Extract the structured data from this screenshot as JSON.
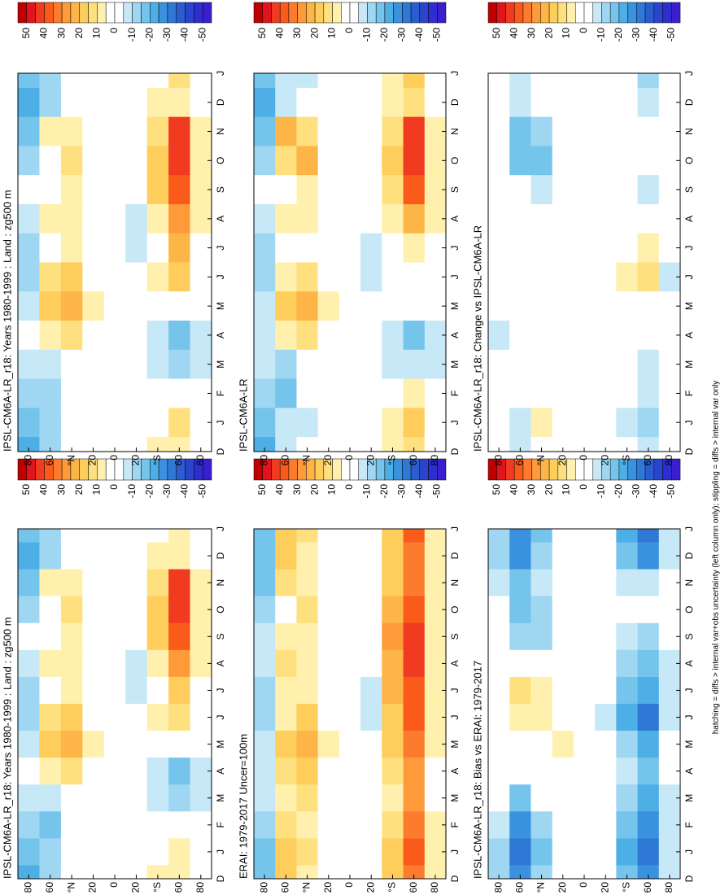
{
  "chart_data": [
    {
      "type": "heatmap",
      "title": "IPSL-CM6A-LR_r18: Years 1980-1999 : Land : zg500 m",
      "categories": [
        "D",
        "J",
        "F",
        "M",
        "A",
        "M",
        "J",
        "J",
        "A",
        "S",
        "O",
        "N",
        "D",
        "J"
      ],
      "y": [
        80,
        60,
        40,
        20,
        0,
        -20,
        -40,
        -60,
        -80
      ],
      "ylim": [
        90,
        -90
      ],
      "yticks": [
        80,
        60,
        {
          "value": 40,
          "label": "°N"
        },
        20,
        0,
        {
          "value": -20,
          "label": "20"
        },
        {
          "value": -40,
          "label": "°S"
        },
        {
          "value": -60,
          "label": "60"
        },
        {
          "value": -80,
          "label": "80"
        }
      ],
      "z": [
        [
          -20,
          -15,
          -10,
          -5,
          0,
          -5,
          -10,
          -10,
          -5,
          0,
          -10,
          -15,
          -20,
          -15
        ],
        [
          -10,
          -10,
          -15,
          -5,
          10,
          20,
          15,
          5,
          10,
          5,
          5,
          10,
          -10,
          -10
        ],
        [
          5,
          0,
          0,
          5,
          15,
          25,
          20,
          10,
          10,
          10,
          15,
          10,
          5,
          0
        ],
        [
          0,
          0,
          0,
          0,
          5,
          10,
          5,
          5,
          5,
          5,
          5,
          0,
          0,
          0
        ],
        [
          0,
          0,
          0,
          0,
          0,
          0,
          0,
          0,
          0,
          0,
          0,
          0,
          0,
          0
        ],
        [
          0,
          0,
          0,
          0,
          0,
          5,
          0,
          -5,
          -5,
          0,
          0,
          0,
          0,
          0
        ],
        [
          10,
          5,
          0,
          -5,
          -5,
          5,
          10,
          0,
          10,
          20,
          20,
          15,
          10,
          5
        ],
        [
          10,
          10,
          5,
          -10,
          -15,
          5,
          15,
          20,
          30,
          40,
          45,
          45,
          10,
          10
        ],
        [
          5,
          5,
          5,
          -5,
          -5,
          0,
          5,
          0,
          10,
          10,
          10,
          10,
          5,
          5
        ]
      ]
    },
    {
      "type": "heatmap",
      "title": "ERAI: 1979-2017 Uncer=100m",
      "categories": [
        "D",
        "J",
        "F",
        "M",
        "A",
        "M",
        "J",
        "J",
        "A",
        "S",
        "O",
        "N",
        "D",
        "J"
      ],
      "y": [
        80,
        60,
        40,
        20,
        0,
        -20,
        -40,
        -60,
        -80
      ],
      "ylim": [
        90,
        -90
      ],
      "yticks": [
        80,
        60,
        {
          "value": 40,
          "label": "°N"
        },
        20,
        0,
        {
          "value": -20,
          "label": "20"
        },
        {
          "value": -40,
          "label": "°S"
        },
        {
          "value": -60,
          "label": "60"
        },
        {
          "value": -80,
          "label": "80"
        }
      ],
      "z": [
        [
          -15,
          -15,
          -10,
          -5,
          -5,
          -5,
          -10,
          -10,
          -5,
          -5,
          -10,
          -15,
          -15,
          -15
        ],
        [
          20,
          20,
          15,
          10,
          15,
          20,
          10,
          10,
          15,
          10,
          5,
          15,
          20,
          20
        ],
        [
          10,
          15,
          10,
          15,
          20,
          25,
          20,
          10,
          10,
          10,
          15,
          10,
          10,
          15
        ],
        [
          0,
          0,
          5,
          5,
          5,
          10,
          5,
          0,
          5,
          5,
          0,
          0,
          0,
          0
        ],
        [
          0,
          0,
          0,
          0,
          0,
          0,
          0,
          0,
          0,
          0,
          0,
          0,
          0,
          0
        ],
        [
          0,
          0,
          0,
          0,
          5,
          0,
          -5,
          -5,
          0,
          0,
          0,
          0,
          0,
          0
        ],
        [
          20,
          20,
          15,
          10,
          15,
          20,
          20,
          25,
          25,
          30,
          25,
          20,
          20,
          20
        ],
        [
          35,
          40,
          35,
          30,
          30,
          35,
          40,
          40,
          45,
          45,
          40,
          35,
          35,
          40
        ],
        [
          10,
          10,
          10,
          5,
          5,
          10,
          10,
          10,
          10,
          10,
          10,
          10,
          10,
          10
        ]
      ]
    },
    {
      "type": "heatmap",
      "title": "IPSL-CM6A-LR_r18: Bias vs ERAI: 1979-2017",
      "categories": [
        "D",
        "J",
        "F",
        "M",
        "A",
        "M",
        "J",
        "J",
        "A",
        "S",
        "O",
        "N",
        "D",
        "J"
      ],
      "y": [
        80,
        60,
        40,
        20,
        0,
        -20,
        -40,
        -60,
        -80
      ],
      "ylim": [
        90,
        -90
      ],
      "yticks": [
        80,
        60,
        {
          "value": 40,
          "label": "°N"
        },
        20,
        0,
        {
          "value": -20,
          "label": "20"
        },
        {
          "value": -40,
          "label": "°S"
        },
        {
          "value": -60,
          "label": "60"
        },
        {
          "value": -80,
          "label": "80"
        }
      ],
      "z": [
        [
          -10,
          -10,
          -5,
          0,
          0,
          0,
          0,
          0,
          0,
          0,
          0,
          -5,
          -10,
          -10
        ],
        [
          -25,
          -30,
          -25,
          -15,
          0,
          5,
          10,
          15,
          5,
          -10,
          -15,
          -15,
          -25,
          -25
        ],
        [
          -10,
          -15,
          -10,
          5,
          5,
          5,
          10,
          10,
          5,
          -10,
          -10,
          -5,
          -10,
          -15
        ],
        [
          0,
          0,
          0,
          5,
          5,
          10,
          5,
          5,
          5,
          0,
          0,
          0,
          0,
          0
        ],
        [
          0,
          0,
          0,
          0,
          0,
          0,
          0,
          0,
          0,
          0,
          0,
          0,
          0,
          0
        ],
        [
          0,
          0,
          0,
          0,
          0,
          0,
          -5,
          0,
          0,
          0,
          0,
          0,
          0,
          0
        ],
        [
          -15,
          -20,
          -15,
          -10,
          -5,
          -10,
          -20,
          -15,
          -10,
          -5,
          0,
          -5,
          -15,
          -20
        ],
        [
          -25,
          -30,
          -25,
          -20,
          -15,
          -20,
          -30,
          -20,
          -15,
          -10,
          5,
          -5,
          -25,
          -30
        ],
        [
          -5,
          -5,
          -5,
          -5,
          0,
          0,
          -5,
          -5,
          -5,
          0,
          0,
          0,
          -5,
          -5
        ]
      ]
    },
    {
      "type": "heatmap",
      "title": "IPSL-CM6A-LR_r18: Years 1980-1999 : Land : zg500 m",
      "categories": [
        "D",
        "J",
        "F",
        "M",
        "A",
        "M",
        "J",
        "J",
        "A",
        "S",
        "O",
        "N",
        "D",
        "J"
      ],
      "y": [
        80,
        60,
        40,
        20,
        0,
        -20,
        -40,
        -60,
        -80
      ],
      "ylim": [
        90,
        -90
      ],
      "yticks": [
        80,
        60,
        {
          "value": 40,
          "label": "°N"
        },
        20,
        0,
        {
          "value": -20,
          "label": "20"
        },
        {
          "value": -40,
          "label": "°S"
        },
        {
          "value": -60,
          "label": "60"
        },
        {
          "value": -80,
          "label": "80"
        }
      ],
      "z": [
        [
          -20,
          -15,
          -10,
          -5,
          0,
          -5,
          -10,
          -10,
          -5,
          0,
          -10,
          -15,
          -20,
          -15
        ],
        [
          -10,
          -10,
          -10,
          -5,
          10,
          20,
          15,
          5,
          10,
          5,
          0,
          10,
          -10,
          -10
        ],
        [
          5,
          0,
          0,
          5,
          15,
          25,
          20,
          10,
          10,
          10,
          15,
          10,
          5,
          0
        ],
        [
          0,
          0,
          0,
          0,
          5,
          10,
          5,
          5,
          5,
          5,
          5,
          0,
          0,
          0
        ],
        [
          0,
          0,
          0,
          0,
          0,
          0,
          0,
          0,
          0,
          0,
          0,
          0,
          0,
          0
        ],
        [
          0,
          0,
          0,
          0,
          0,
          5,
          0,
          -5,
          -5,
          0,
          0,
          0,
          0,
          0
        ],
        [
          10,
          5,
          0,
          -5,
          -5,
          5,
          10,
          5,
          10,
          20,
          20,
          15,
          10,
          5
        ],
        [
          10,
          15,
          5,
          -10,
          -15,
          5,
          20,
          25,
          30,
          40,
          45,
          45,
          10,
          15
        ],
        [
          5,
          5,
          5,
          -5,
          -5,
          0,
          5,
          0,
          10,
          10,
          10,
          10,
          5,
          5
        ]
      ]
    },
    {
      "type": "heatmap",
      "title": "IPSL-CM6A-LR",
      "categories": [
        "D",
        "J",
        "F",
        "M",
        "A",
        "M",
        "J",
        "J",
        "A",
        "S",
        "O",
        "N",
        "D",
        "J"
      ],
      "y": [
        80,
        60,
        40,
        20,
        0,
        -20,
        -40,
        -60,
        -80
      ],
      "ylim": [
        90,
        -90
      ],
      "yticks": [
        80,
        60,
        {
          "value": 40,
          "label": "°N"
        },
        20,
        0,
        {
          "value": -20,
          "label": "20"
        },
        {
          "value": -40,
          "label": "°S"
        },
        {
          "value": -60,
          "label": "60"
        },
        {
          "value": -80,
          "label": "80"
        }
      ],
      "z": [
        [
          -20,
          -15,
          -10,
          -5,
          -5,
          -5,
          -10,
          -10,
          -5,
          0,
          -10,
          -15,
          -20,
          -15
        ],
        [
          -5,
          -5,
          -15,
          -10,
          10,
          20,
          10,
          5,
          10,
          5,
          15,
          25,
          -5,
          -5
        ],
        [
          0,
          -5,
          0,
          5,
          15,
          25,
          15,
          5,
          10,
          10,
          25,
          15,
          0,
          -5
        ],
        [
          0,
          0,
          0,
          0,
          5,
          10,
          5,
          0,
          5,
          5,
          5,
          0,
          0,
          0
        ],
        [
          0,
          0,
          0,
          0,
          0,
          0,
          0,
          0,
          0,
          0,
          0,
          0,
          0,
          0
        ],
        [
          0,
          0,
          0,
          0,
          0,
          5,
          -5,
          -5,
          0,
          0,
          0,
          0,
          0,
          0
        ],
        [
          10,
          10,
          0,
          -5,
          -5,
          5,
          0,
          0,
          10,
          15,
          20,
          15,
          10,
          10
        ],
        [
          15,
          20,
          10,
          -5,
          -15,
          0,
          5,
          10,
          25,
          40,
          45,
          45,
          15,
          20
        ],
        [
          5,
          5,
          5,
          -5,
          -5,
          0,
          5,
          0,
          10,
          10,
          10,
          10,
          5,
          5
        ]
      ]
    },
    {
      "type": "heatmap",
      "title": "IPSL-CM6A-LR_r18: Change vs IPSL-CM6A-LR",
      "categories": [
        "D",
        "J",
        "F",
        "M",
        "A",
        "M",
        "J",
        "J",
        "A",
        "S",
        "O",
        "N",
        "D",
        "J"
      ],
      "y": [
        80,
        60,
        40,
        20,
        0,
        -20,
        -40,
        -60,
        -80
      ],
      "ylim": [
        90,
        -90
      ],
      "yticks": [
        80,
        60,
        {
          "value": 40,
          "label": "°N"
        },
        20,
        0,
        {
          "value": -20,
          "label": "20"
        },
        {
          "value": -40,
          "label": "°S"
        },
        {
          "value": -60,
          "label": "60"
        },
        {
          "value": -80,
          "label": "80"
        }
      ],
      "z": [
        [
          0,
          0,
          0,
          0,
          -5,
          0,
          0,
          0,
          0,
          0,
          0,
          0,
          0,
          0
        ],
        [
          -5,
          -5,
          5,
          5,
          0,
          0,
          0,
          0,
          0,
          0,
          -15,
          -15,
          -5,
          -5
        ],
        [
          5,
          10,
          5,
          0,
          0,
          0,
          5,
          5,
          0,
          -5,
          -15,
          -10,
          0,
          0
        ],
        [
          0,
          0,
          0,
          0,
          0,
          0,
          5,
          5,
          0,
          0,
          0,
          0,
          0,
          0
        ],
        [
          0,
          0,
          0,
          0,
          0,
          0,
          0,
          0,
          0,
          0,
          0,
          0,
          0,
          0
        ],
        [
          0,
          0,
          0,
          0,
          0,
          0,
          0,
          0,
          0,
          0,
          0,
          0,
          0,
          0
        ],
        [
          0,
          -5,
          0,
          0,
          0,
          0,
          10,
          5,
          0,
          5,
          0,
          0,
          0,
          0
        ],
        [
          -5,
          -10,
          -5,
          -5,
          0,
          5,
          15,
          10,
          5,
          -5,
          0,
          0,
          -5,
          -10
        ],
        [
          0,
          0,
          0,
          0,
          0,
          0,
          -5,
          0,
          0,
          0,
          0,
          0,
          0,
          0
        ]
      ]
    }
  ],
  "colorbar": {
    "levels": [
      55,
      50,
      45,
      40,
      35,
      30,
      25,
      20,
      15,
      10,
      5,
      0,
      -5,
      -10,
      -15,
      -20,
      -25,
      -30,
      -35,
      -40,
      -45,
      -50,
      -55
    ],
    "colors": [
      "#c00000",
      "#e0141c",
      "#f03b20",
      "#fa5a1a",
      "#fd7b2e",
      "#fe9a3a",
      "#feb547",
      "#fecd5c",
      "#fee17e",
      "#fff1ad",
      "#ffffff",
      "#ffffff",
      "#c6e8f7",
      "#9fd6f2",
      "#74c4ec",
      "#4eaee6",
      "#3a92de",
      "#2f78d6",
      "#2a5ed0",
      "#2a45cc",
      "#2d2dd0",
      "#3a1fcf"
    ],
    "ticks": [
      50,
      40,
      30,
      20,
      10,
      0,
      -10,
      -20,
      -30,
      -40,
      -50
    ]
  },
  "footnote": "hatching = diffs > internal var+obs uncertainty (left column only); stippling = diffs > internal var only"
}
